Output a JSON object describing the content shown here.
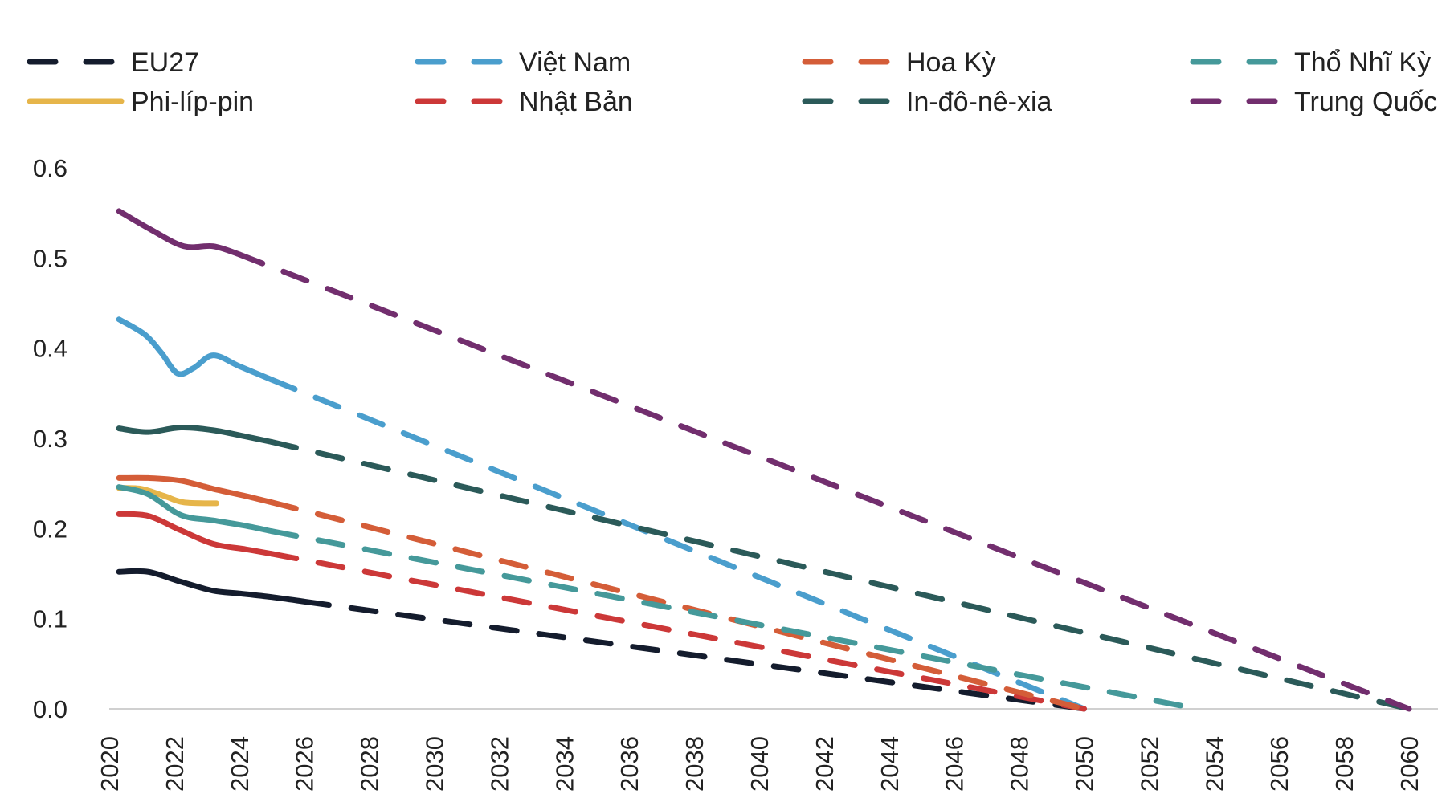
{
  "chart_data": {
    "type": "line",
    "title": "",
    "xlabel": "",
    "ylabel": "",
    "xlim": [
      2020,
      2060
    ],
    "ylim": [
      0,
      0.6
    ],
    "grid": false,
    "legend_position": "top",
    "x_ticks": [
      "2020",
      "2022",
      "2024",
      "2026",
      "2028",
      "2030",
      "2032",
      "2034",
      "2036",
      "2038",
      "2040",
      "2042",
      "2044",
      "2046",
      "2048",
      "2050",
      "2052",
      "2054",
      "2056",
      "2058",
      "2060"
    ],
    "y_ticks": [
      "0.0",
      "0.1",
      "0.2",
      "0.3",
      "0.4",
      "0.5",
      "0.6"
    ],
    "series": [
      {
        "name": "EU27",
        "color": "#141c2d",
        "legend_style": "dashed",
        "actual": [
          [
            2020.3,
            0.152
          ],
          [
            2021.2,
            0.152
          ],
          [
            2022.2,
            0.141
          ],
          [
            2023.2,
            0.131
          ],
          [
            2024,
            0.128
          ],
          [
            2025,
            0.124
          ],
          [
            2026,
            0.119
          ]
        ],
        "projection": [
          [
            2026,
            0.119
          ],
          [
            2050,
            0.0
          ]
        ]
      },
      {
        "name": "Phi-líp-pin",
        "color": "#e6b54a",
        "legend_style": "solid",
        "actual": [
          [
            2020.3,
            0.245
          ],
          [
            2021,
            0.244
          ],
          [
            2021.7,
            0.236
          ],
          [
            2022.3,
            0.229
          ],
          [
            2023.3,
            0.228
          ]
        ],
        "projection": []
      },
      {
        "name": "Việt Nam",
        "color": "#4a9ecd",
        "legend_style": "dashed",
        "actual": [
          [
            2020.3,
            0.432
          ],
          [
            2021.1,
            0.415
          ],
          [
            2021.6,
            0.395
          ],
          [
            2022.1,
            0.372
          ],
          [
            2022.6,
            0.378
          ],
          [
            2023.2,
            0.392
          ],
          [
            2024,
            0.38
          ],
          [
            2025,
            0.365
          ]
        ],
        "projection": [
          [
            2025,
            0.365
          ],
          [
            2050,
            0.0
          ]
        ]
      },
      {
        "name": "Nhật Bản",
        "color": "#cc3838",
        "legend_style": "dashed",
        "actual": [
          [
            2020.3,
            0.216
          ],
          [
            2021.2,
            0.214
          ],
          [
            2022.2,
            0.198
          ],
          [
            2023.2,
            0.183
          ],
          [
            2024.2,
            0.177
          ],
          [
            2025,
            0.172
          ]
        ],
        "projection": [
          [
            2025,
            0.172
          ],
          [
            2050,
            0.0
          ]
        ]
      },
      {
        "name": "Hoa Kỳ",
        "color": "#d45d38",
        "legend_style": "dashed",
        "actual": [
          [
            2020.3,
            0.256
          ],
          [
            2021.2,
            0.256
          ],
          [
            2022.2,
            0.253
          ],
          [
            2023.2,
            0.244
          ],
          [
            2024.2,
            0.236
          ],
          [
            2025,
            0.229
          ]
        ],
        "projection": [
          [
            2025,
            0.229
          ],
          [
            2050,
            0.0
          ]
        ]
      },
      {
        "name": "In-đô-nê-xia",
        "color": "#2b5a59",
        "legend_style": "dashed",
        "actual": [
          [
            2020.3,
            0.311
          ],
          [
            2021.2,
            0.307
          ],
          [
            2022.2,
            0.312
          ],
          [
            2023.2,
            0.309
          ],
          [
            2024.2,
            0.302
          ],
          [
            2025,
            0.296
          ]
        ],
        "projection": [
          [
            2025,
            0.296
          ],
          [
            2060,
            0.0
          ]
        ]
      },
      {
        "name": "Thổ Nhĩ Kỳ",
        "color": "#45999a",
        "legend_style": "dashed",
        "actual": [
          [
            2020.3,
            0.246
          ],
          [
            2021.2,
            0.238
          ],
          [
            2022.2,
            0.215
          ],
          [
            2023.2,
            0.209
          ],
          [
            2024.2,
            0.203
          ],
          [
            2025,
            0.197
          ]
        ],
        "projection": [
          [
            2025,
            0.197
          ],
          [
            2053.5,
            0.0
          ]
        ]
      },
      {
        "name": "Trung Quốc",
        "color": "#722e6e",
        "legend_style": "dashed",
        "actual": [
          [
            2020.3,
            0.552
          ],
          [
            2021.3,
            0.531
          ],
          [
            2022.3,
            0.513
          ],
          [
            2023.2,
            0.513
          ],
          [
            2024,
            0.504
          ]
        ],
        "projection": [
          [
            2024,
            0.504
          ],
          [
            2060,
            0.0
          ]
        ]
      }
    ]
  }
}
